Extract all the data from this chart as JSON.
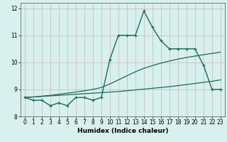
{
  "x": [
    0,
    1,
    2,
    3,
    4,
    5,
    6,
    7,
    8,
    9,
    10,
    11,
    12,
    13,
    14,
    15,
    16,
    17,
    18,
    19,
    20,
    21,
    22,
    23
  ],
  "y_main": [
    8.7,
    8.6,
    8.6,
    8.4,
    8.5,
    8.4,
    8.7,
    8.7,
    8.6,
    8.7,
    10.1,
    11.0,
    11.0,
    11.0,
    11.9,
    11.3,
    10.8,
    10.5,
    10.5,
    10.5,
    10.5,
    9.9,
    9.0,
    9.0
  ],
  "y_trend1": [
    8.7,
    8.72,
    8.75,
    8.78,
    8.82,
    8.86,
    8.9,
    8.95,
    9.0,
    9.07,
    9.2,
    9.35,
    9.5,
    9.65,
    9.78,
    9.88,
    9.97,
    10.05,
    10.12,
    10.18,
    10.23,
    10.28,
    10.33,
    10.38
  ],
  "y_trend2": [
    8.7,
    8.72,
    8.74,
    8.76,
    8.78,
    8.8,
    8.82,
    8.84,
    8.86,
    8.88,
    8.9,
    8.92,
    8.95,
    8.98,
    9.01,
    9.04,
    9.07,
    9.1,
    9.14,
    9.18,
    9.22,
    9.26,
    9.3,
    9.35
  ],
  "line_color": "#1a6b5a",
  "bg_color": "#d8f0ee",
  "grid_color": "#c8b8b8",
  "xlabel": "Humidex (Indice chaleur)",
  "ylim": [
    8.0,
    12.2
  ],
  "xlim": [
    -0.5,
    23.5
  ],
  "yticks": [
    8,
    9,
    10,
    11,
    12
  ],
  "xticks": [
    0,
    1,
    2,
    3,
    4,
    5,
    6,
    7,
    8,
    9,
    10,
    11,
    12,
    13,
    14,
    15,
    16,
    17,
    18,
    19,
    20,
    21,
    22,
    23
  ]
}
